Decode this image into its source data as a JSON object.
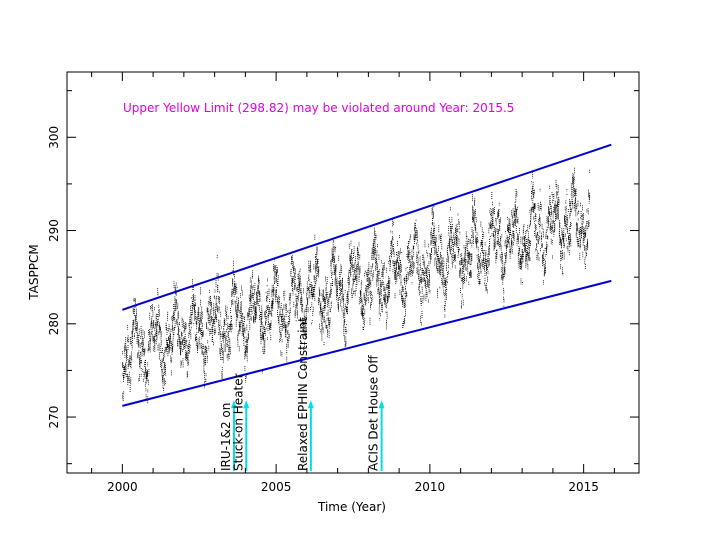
{
  "chart_data": {
    "type": "scatter",
    "title": "",
    "xlabel": "Time (Year)",
    "ylabel": "TASPPCM",
    "xlim": [
      1998.2,
      2016.8
    ],
    "ylim": [
      264,
      307
    ],
    "xticks": [
      2000,
      2005,
      2010,
      2015
    ],
    "yticks": [
      270,
      280,
      290,
      300
    ],
    "grid": false,
    "annotation": "Upper Yellow  Limit (298.82) may be violated around Year: 2015.5",
    "trend_lines": [
      {
        "x": [
          2000,
          2015.9
        ],
        "y": [
          281.5,
          299.2
        ],
        "color": "#0000cc"
      },
      {
        "x": [
          2000,
          2015.9
        ],
        "y": [
          271.2,
          284.6
        ],
        "color": "#0000cc"
      }
    ],
    "events": [
      {
        "label": "IRU-1&2 on",
        "x": 2003.5
      },
      {
        "label": "Stuck-on Heater",
        "x": 2003.9
      },
      {
        "label": "Relaxed EPHIN Constraint",
        "x": 2006.0
      },
      {
        "label": "ACIS Det House Off",
        "x": 2008.3
      }
    ],
    "scatter_series": {
      "x_range": [
        2000.0,
        2015.2
      ],
      "trend_start": 277.0,
      "trend_end": 291.5,
      "spread": 6.0,
      "color": "#000000",
      "highlight_color": "#e000e0",
      "highlight_threshold": 298.82
    },
    "colors": {
      "axis": "#000000",
      "trend": "#0000cc",
      "event_arrow": "#00e0e0",
      "annotation": "#e000e0"
    }
  }
}
